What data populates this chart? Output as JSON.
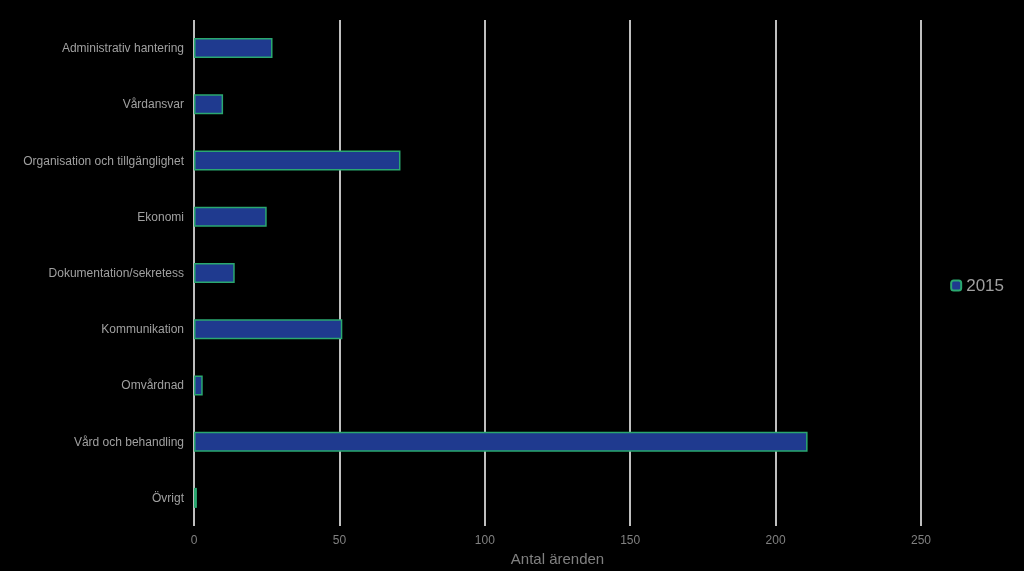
{
  "chart_data": {
    "type": "bar",
    "orientation": "horizontal",
    "xlabel": "Antal ärenden",
    "categories": [
      "Administrativ hantering",
      "Vårdansvar",
      "Organisation och tillgänglighet",
      "Ekonomi",
      "Dokumentation/sekretess",
      "Kommunikation",
      "Omvårdnad",
      "Vård och behandling",
      "Övrigt"
    ],
    "series": [
      {
        "name": "2015",
        "color": "#1f3a8f",
        "values": [
          27,
          10,
          71,
          25,
          14,
          51,
          3,
          211,
          1
        ]
      }
    ],
    "xlim": [
      0,
      250
    ],
    "xticks": [
      0,
      50,
      100,
      150,
      200,
      250
    ],
    "grid": "x",
    "legend": "right"
  }
}
